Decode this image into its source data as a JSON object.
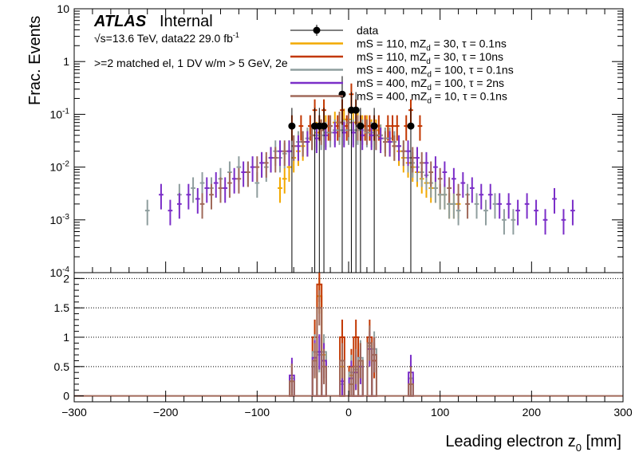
{
  "header": {
    "atlas": "ATLAS",
    "internal": "Internal",
    "energy_line": "√s=13.6 TeV, data22 29.0 fb",
    "energy_sup": "-1",
    "selection": ">=2 matched el, 1 DV w/m > 5 GeV, 2e"
  },
  "chart_data": [
    {
      "type": "line",
      "panel": "top",
      "ylabel": "Frac. Events",
      "yscale": "log",
      "ylim": [
        0.0001,
        10
      ],
      "xlim": [
        -300,
        300
      ],
      "yticks": [
        "10",
        "1",
        "10^-1",
        "10^-2",
        "10^-3",
        "10^-4"
      ],
      "legend": [
        {
          "label": "data",
          "color": "#000000",
          "marker": "circle"
        },
        {
          "label": "mS = 110, mZd = 30, τ = 0.1ns",
          "color": "#f2a900"
        },
        {
          "label": "mS = 110, mZd = 30, τ = 10ns",
          "color": "#c23700"
        },
        {
          "label": "mS = 400, mZd = 100, τ = 0.1ns",
          "color": "#8f9e9e"
        },
        {
          "label": "mS = 400, mZd = 100, τ = 2ns",
          "color": "#7b2ec8"
        },
        {
          "label": "mS = 400, mZd = 10, τ = 0.1ns",
          "color": "#a0695a"
        }
      ],
      "series": [
        {
          "name": "data",
          "color": "#000000",
          "x": [
            -62,
            -37,
            -32,
            -27,
            -7,
            3,
            8,
            13,
            28,
            68
          ],
          "y": [
            0.06,
            0.06,
            0.06,
            0.06,
            0.24,
            0.12,
            0.12,
            0.06,
            0.06,
            0.06
          ]
        },
        {
          "name": "mS = 110, mZd = 30, τ = 0.1ns",
          "color": "#f2a900",
          "x": [
            -75,
            -70,
            -65,
            -60,
            -55,
            -50,
            -45,
            -40,
            -35,
            -30,
            -25,
            -20,
            -15,
            -10,
            -5,
            0,
            5,
            10,
            15,
            20,
            25,
            30,
            35,
            40,
            45,
            50,
            55,
            60,
            65,
            70,
            75,
            80,
            85,
            90,
            95,
            100,
            105,
            110,
            115,
            120
          ],
          "y": [
            0.004,
            0.006,
            0.01,
            0.015,
            0.02,
            0.025,
            0.03,
            0.04,
            0.045,
            0.05,
            0.06,
            0.06,
            0.07,
            0.07,
            0.08,
            0.08,
            0.07,
            0.07,
            0.06,
            0.06,
            0.05,
            0.05,
            0.04,
            0.035,
            0.03,
            0.025,
            0.02,
            0.015,
            0.012,
            0.01,
            0.008,
            0.006,
            0.005,
            0.004,
            0.004,
            0.003,
            0.003,
            0.002,
            0.002,
            0.002
          ]
        },
        {
          "name": "mS = 110, mZd = 30, τ = 10ns",
          "color": "#c23700",
          "x": [
            -62,
            -52,
            -42,
            -37,
            -32,
            -27,
            -22,
            -12,
            -7,
            -2,
            3,
            8,
            13,
            18,
            23,
            28,
            33,
            43,
            48,
            53,
            63,
            68,
            78
          ],
          "y": [
            0.06,
            0.06,
            0.06,
            0.12,
            0.06,
            0.12,
            0.06,
            0.06,
            0.12,
            0.06,
            0.24,
            0.12,
            0.06,
            0.06,
            0.06,
            0.06,
            0.06,
            0.06,
            0.06,
            0.06,
            0.06,
            0.12,
            0.06
          ]
        },
        {
          "name": "mS = 400, mZd = 100, τ = 0.1ns",
          "color": "#8f9e9e",
          "x": [
            -220,
            -185,
            -170,
            -160,
            -150,
            -140,
            -130,
            -120,
            -110,
            -100,
            -95,
            -90,
            -85,
            -80,
            -75,
            -70,
            -65,
            -60,
            -55,
            -50,
            -45,
            -40,
            -35,
            -30,
            -25,
            -20,
            -15,
            -10,
            -5,
            0,
            5,
            10,
            15,
            20,
            25,
            30,
            35,
            40,
            45,
            50,
            55,
            60,
            65,
            70,
            75,
            80,
            85,
            90,
            95,
            100,
            105,
            110,
            115,
            120,
            130,
            140,
            150,
            160,
            170,
            180
          ],
          "y": [
            0.0015,
            0.003,
            0.004,
            0.005,
            0.004,
            0.006,
            0.008,
            0.01,
            0.008,
            0.005,
            0.012,
            0.01,
            0.015,
            0.02,
            0.015,
            0.018,
            0.02,
            0.025,
            0.03,
            0.03,
            0.035,
            0.04,
            0.04,
            0.04,
            0.045,
            0.045,
            0.05,
            0.05,
            0.05,
            0.05,
            0.05,
            0.05,
            0.05,
            0.045,
            0.045,
            0.04,
            0.04,
            0.035,
            0.035,
            0.03,
            0.025,
            0.02,
            0.015,
            0.012,
            0.01,
            0.008,
            0.007,
            0.005,
            0.004,
            0.003,
            0.003,
            0.002,
            0.002,
            0.0015,
            0.003,
            0.002,
            0.0015,
            0.002,
            0.001,
            0.001
          ]
        },
        {
          "name": "mS = 400, mZd = 100, τ = 2ns",
          "color": "#7b2ec8",
          "x": [
            -205,
            -195,
            -185,
            -175,
            -165,
            -155,
            -145,
            -135,
            -125,
            -115,
            -105,
            -95,
            -85,
            -75,
            -65,
            -55,
            -45,
            -35,
            -25,
            -15,
            -5,
            5,
            15,
            25,
            35,
            45,
            55,
            65,
            75,
            85,
            95,
            105,
            115,
            125,
            135,
            145,
            155,
            165,
            175,
            185,
            195,
            205,
            215,
            225,
            235,
            245
          ],
          "y": [
            0.003,
            0.0015,
            0.002,
            0.003,
            0.0025,
            0.004,
            0.005,
            0.004,
            0.006,
            0.008,
            0.01,
            0.012,
            0.015,
            0.02,
            0.02,
            0.025,
            0.03,
            0.035,
            0.04,
            0.045,
            0.045,
            0.045,
            0.04,
            0.04,
            0.035,
            0.03,
            0.025,
            0.02,
            0.015,
            0.012,
            0.01,
            0.008,
            0.006,
            0.005,
            0.004,
            0.003,
            0.003,
            0.002,
            0.002,
            0.0015,
            0.002,
            0.0015,
            0.001,
            0.0025,
            0.001,
            0.0015
          ]
        },
        {
          "name": "mS = 400, mZd = 10, τ = 0.1ns",
          "color": "#a0695a",
          "x": [
            -160,
            -150,
            -140,
            -130,
            -120,
            -110,
            -100,
            -90,
            -80,
            -70,
            -60,
            -50,
            -40,
            -30,
            -20,
            -10,
            0,
            10,
            20,
            30,
            40,
            50,
            60,
            70,
            80,
            90,
            100,
            110,
            120,
            130
          ],
          "y": [
            0.002,
            0.003,
            0.004,
            0.005,
            0.006,
            0.008,
            0.01,
            0.012,
            0.015,
            0.02,
            0.025,
            0.03,
            0.04,
            0.05,
            0.06,
            0.07,
            0.07,
            0.06,
            0.05,
            0.04,
            0.03,
            0.025,
            0.02,
            0.015,
            0.012,
            0.008,
            0.006,
            0.004,
            0.003,
            0.002
          ]
        }
      ]
    },
    {
      "type": "line",
      "panel": "ratio",
      "xlabel": "Leading electron z",
      "xlabel_sub": "0",
      "xlabel_unit": " [mm]",
      "xlim": [
        -300,
        300
      ],
      "ylim": [
        -0.1,
        2.1
      ],
      "xticks": [
        -300,
        -200,
        -100,
        0,
        100,
        200,
        300
      ],
      "yticks": [
        0,
        0.5,
        1,
        1.5,
        2
      ],
      "grid": true,
      "series": [
        {
          "name": "mS = 110, mZd = 30, τ = 0.1ns",
          "color": "#f2a900",
          "x": [
            -62,
            -37,
            -32,
            -27,
            -7,
            3,
            8,
            13,
            23,
            28,
            68
          ],
          "y": [
            0.25,
            0.6,
            1.7,
            0.7,
            0.5,
            0.35,
            0.4,
            0.6,
            0.9,
            0.7,
            0.3
          ]
        },
        {
          "name": "mS = 110, mZd = 30, τ = 10ns",
          "color": "#c23700",
          "x": [
            -62,
            -37,
            -32,
            -27,
            -7,
            3,
            8,
            13,
            23,
            28,
            68
          ],
          "y": [
            0.0,
            1.0,
            1.9,
            0.6,
            1.0,
            0.5,
            1.0,
            0.6,
            1.0,
            0.6,
            0.0
          ]
        },
        {
          "name": "mS = 400, mZd = 100, τ = 0.1ns",
          "color": "#8f9e9e",
          "x": [
            -62,
            -37,
            -32,
            -27,
            -7,
            3,
            8,
            13,
            23,
            28,
            68
          ],
          "y": [
            0.3,
            0.75,
            0.7,
            0.75,
            0.2,
            0.4,
            0.45,
            0.65,
            0.85,
            0.8,
            0.3
          ]
        },
        {
          "name": "mS = 400, mZd = 100, τ = 2ns",
          "color": "#7b2ec8",
          "x": [
            -62,
            -37,
            -32,
            -27,
            -7,
            3,
            8,
            13,
            23,
            28,
            68
          ],
          "y": [
            0.35,
            0.65,
            0.75,
            0.6,
            0.25,
            0.3,
            0.4,
            0.5,
            0.8,
            0.7,
            0.4
          ]
        },
        {
          "name": "mS = 400, mZd = 10, τ = 0.1ns",
          "color": "#a0695a",
          "x": [
            -62,
            -37,
            -32,
            -27,
            -7,
            3,
            8,
            13,
            23,
            28,
            68
          ],
          "y": [
            0.25,
            0.6,
            1.5,
            0.5,
            0.6,
            0.2,
            0.5,
            0.6,
            0.9,
            0.7,
            0.2
          ]
        }
      ]
    }
  ]
}
